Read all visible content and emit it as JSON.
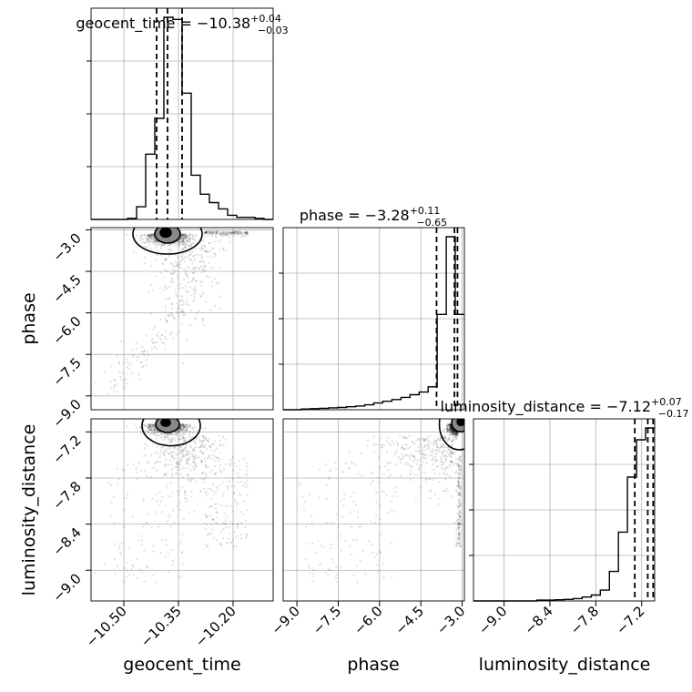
{
  "chart_data": {
    "type": "corner",
    "parameters": [
      "geocent_time",
      "phase",
      "luminosity_distance"
    ],
    "axis_labels": [
      "geocent_time",
      "phase",
      "luminosity_distance"
    ],
    "ranges": {
      "geocent_time": [
        -10.59,
        -10.09
      ],
      "phase": [
        -9.5,
        -2.92
      ],
      "luminosity_distance": [
        -9.4,
        -7.03
      ]
    },
    "ticks": {
      "geocent_time": [
        -10.5,
        -10.35,
        -10.2
      ],
      "phase": [
        -9.0,
        -7.5,
        -6.0,
        -4.5,
        -3.0
      ],
      "luminosity_distance": [
        -9.0,
        -8.4,
        -7.8,
        -7.2
      ]
    },
    "tick_labels": {
      "geocent_time": [
        "−10.50",
        "−10.35",
        "−10.20"
      ],
      "phase": [
        "−9.0",
        "−7.5",
        "−6.0",
        "−4.5",
        "−3.0"
      ],
      "luminosity_distance": [
        "−9.0",
        "−8.4",
        "−7.8",
        "−7.2"
      ]
    },
    "titles": [
      {
        "param": "geocent_time",
        "text": "geocent_time = −10.38",
        "plus": "+0.04",
        "minus": "−0.03"
      },
      {
        "param": "phase",
        "text": "phase = −3.28",
        "plus": "+0.11",
        "minus": "−0.65"
      },
      {
        "param": "luminosity_distance",
        "text": "luminosity_distance = −7.12",
        "plus": "+0.07",
        "minus": "−0.17"
      }
    ],
    "quantiles": {
      "geocent_time": [
        -10.41,
        -10.38,
        -10.34
      ],
      "phase": [
        -3.93,
        -3.28,
        -3.17
      ],
      "luminosity_distance": [
        -7.29,
        -7.12,
        -7.05
      ]
    },
    "histograms": {
      "geocent_time": {
        "bins": [
          -10.59,
          -10.565,
          -10.54,
          -10.515,
          -10.49,
          -10.465,
          -10.44,
          -10.415,
          -10.39,
          -10.365,
          -10.34,
          -10.315,
          -10.29,
          -10.265,
          -10.24,
          -10.215,
          -10.19,
          -10.165,
          -10.14,
          -10.115,
          -10.09
        ],
        "counts": [
          0,
          0,
          0,
          0,
          0.005,
          0.06,
          0.31,
          0.48,
          0.96,
          0.95,
          0.6,
          0.21,
          0.12,
          0.08,
          0.05,
          0.02,
          0.01,
          0.01,
          0.005,
          0.0
        ]
      },
      "phase": {
        "bins": [
          -9.5,
          -9.171,
          -8.842,
          -8.513,
          -8.184,
          -7.855,
          -7.526,
          -7.197,
          -6.868,
          -6.539,
          -6.21,
          -5.881,
          -5.552,
          -5.223,
          -4.894,
          -4.565,
          -4.236,
          -3.907,
          -3.578,
          -3.249,
          -2.92
        ],
        "counts": [
          0,
          0,
          0.004,
          0.006,
          0.008,
          0.011,
          0.013,
          0.017,
          0.021,
          0.028,
          0.038,
          0.048,
          0.058,
          0.07,
          0.085,
          0.1,
          0.13,
          0.54,
          0.98,
          0.54
        ]
      },
      "luminosity_distance": {
        "bins": [
          -9.4,
          -9.2815,
          -9.163,
          -9.0445,
          -8.926,
          -8.8075,
          -8.689,
          -8.5705,
          -8.452,
          -8.3335,
          -8.215,
          -8.0965,
          -7.978,
          -7.8595,
          -7.741,
          -7.6225,
          -7.504,
          -7.3855,
          -7.267,
          -7.1485,
          -7.03
        ],
        "counts": [
          0,
          0,
          0,
          0,
          0,
          0,
          0,
          0.004,
          0.004,
          0.006,
          0.008,
          0.012,
          0.02,
          0.03,
          0.055,
          0.15,
          0.35,
          0.63,
          0.82,
          0.88
        ]
      }
    }
  }
}
